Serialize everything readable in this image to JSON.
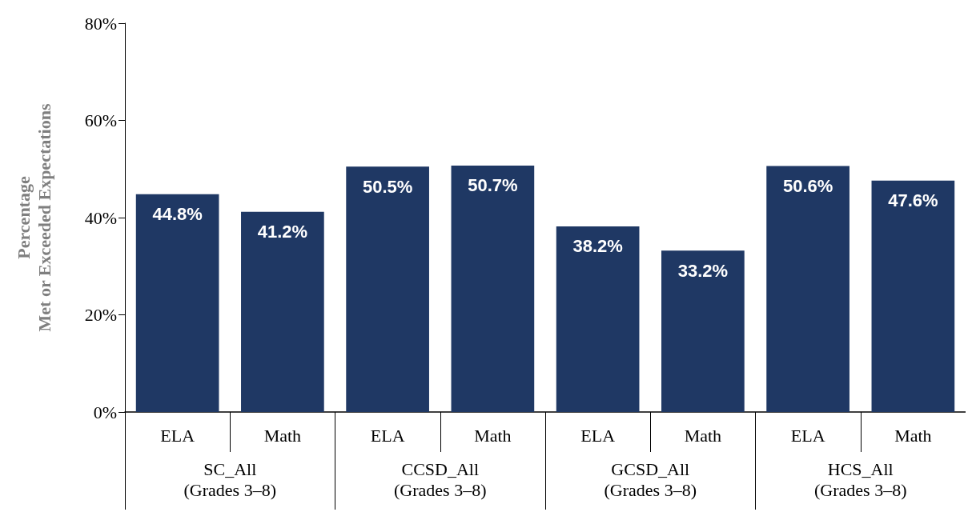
{
  "chart_data": {
    "type": "bar",
    "ylabel": "Percentage\nMet or Exceeded Expectations",
    "categories": [
      "ELA",
      "Math",
      "ELA",
      "Math",
      "ELA",
      "Math",
      "ELA",
      "Math"
    ],
    "values": [
      44.8,
      41.2,
      50.5,
      50.7,
      38.2,
      33.2,
      50.6,
      47.6
    ],
    "value_labels": [
      "44.8%",
      "41.2%",
      "50.5%",
      "50.7%",
      "38.2%",
      "33.2%",
      "50.6%",
      "47.6%"
    ],
    "color": "#1f3864",
    "ylim": [
      0,
      80
    ],
    "yticks": [
      {
        "value": 0,
        "label": "0%"
      },
      {
        "value": 20,
        "label": "20%"
      },
      {
        "value": 40,
        "label": "40%"
      },
      {
        "value": 60,
        "label": "60%"
      },
      {
        "value": 80,
        "label": "80%"
      }
    ],
    "annotations": [
      "SC_All\n(Grades 3–8)",
      "CCSD_All\n(Grades 3–8)",
      "GCSD_All\n(Grades 3–8)",
      "HCS_All\n(Grades 3–8)"
    ],
    "grid": false
  }
}
